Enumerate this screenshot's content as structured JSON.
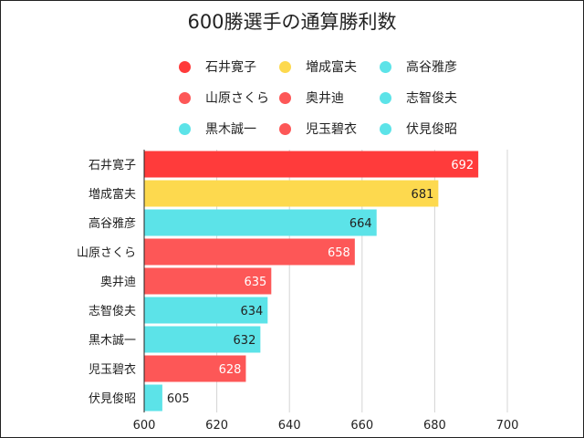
{
  "chart_data": {
    "type": "bar",
    "orientation": "horizontal",
    "title": "600勝選手の通算勝利数",
    "categories": [
      "石井寛子",
      "増成富夫",
      "高谷雅彦",
      "山原さくら",
      "奥井迪",
      "志智俊夫",
      "黒木誠一",
      "児玉碧衣",
      "伏見俊昭"
    ],
    "values": [
      692,
      681,
      664,
      658,
      635,
      634,
      632,
      628,
      605
    ],
    "bar_colors": [
      "#ff3b3b",
      "#fdd94e",
      "#5ce3e8",
      "#fd5757",
      "#fd5757",
      "#5ce3e8",
      "#5ce3e8",
      "#fd5757",
      "#5ce3e8"
    ],
    "label_colors": [
      "#ffffff",
      "#222222",
      "#222222",
      "#ffffff",
      "#ffffff",
      "#222222",
      "#222222",
      "#ffffff",
      "#222222"
    ],
    "xlim": [
      600,
      700
    ],
    "x_ticks": [
      "600",
      "620",
      "640",
      "660",
      "680",
      "700"
    ],
    "grid": true,
    "legend_position": "top",
    "legend": [
      {
        "name": "石井寛子",
        "color": "#ff3b3b"
      },
      {
        "name": "増成富夫",
        "color": "#fdd94e"
      },
      {
        "name": "高谷雅彦",
        "color": "#5ce3e8"
      },
      {
        "name": "山原さくら",
        "color": "#fd5757"
      },
      {
        "name": "奥井迪",
        "color": "#fd5757"
      },
      {
        "name": "志智俊夫",
        "color": "#5ce3e8"
      },
      {
        "name": "黒木誠一",
        "color": "#5ce3e8"
      },
      {
        "name": "児玉碧衣",
        "color": "#fd5757"
      },
      {
        "name": "伏見俊昭",
        "color": "#5ce3e8"
      }
    ]
  }
}
